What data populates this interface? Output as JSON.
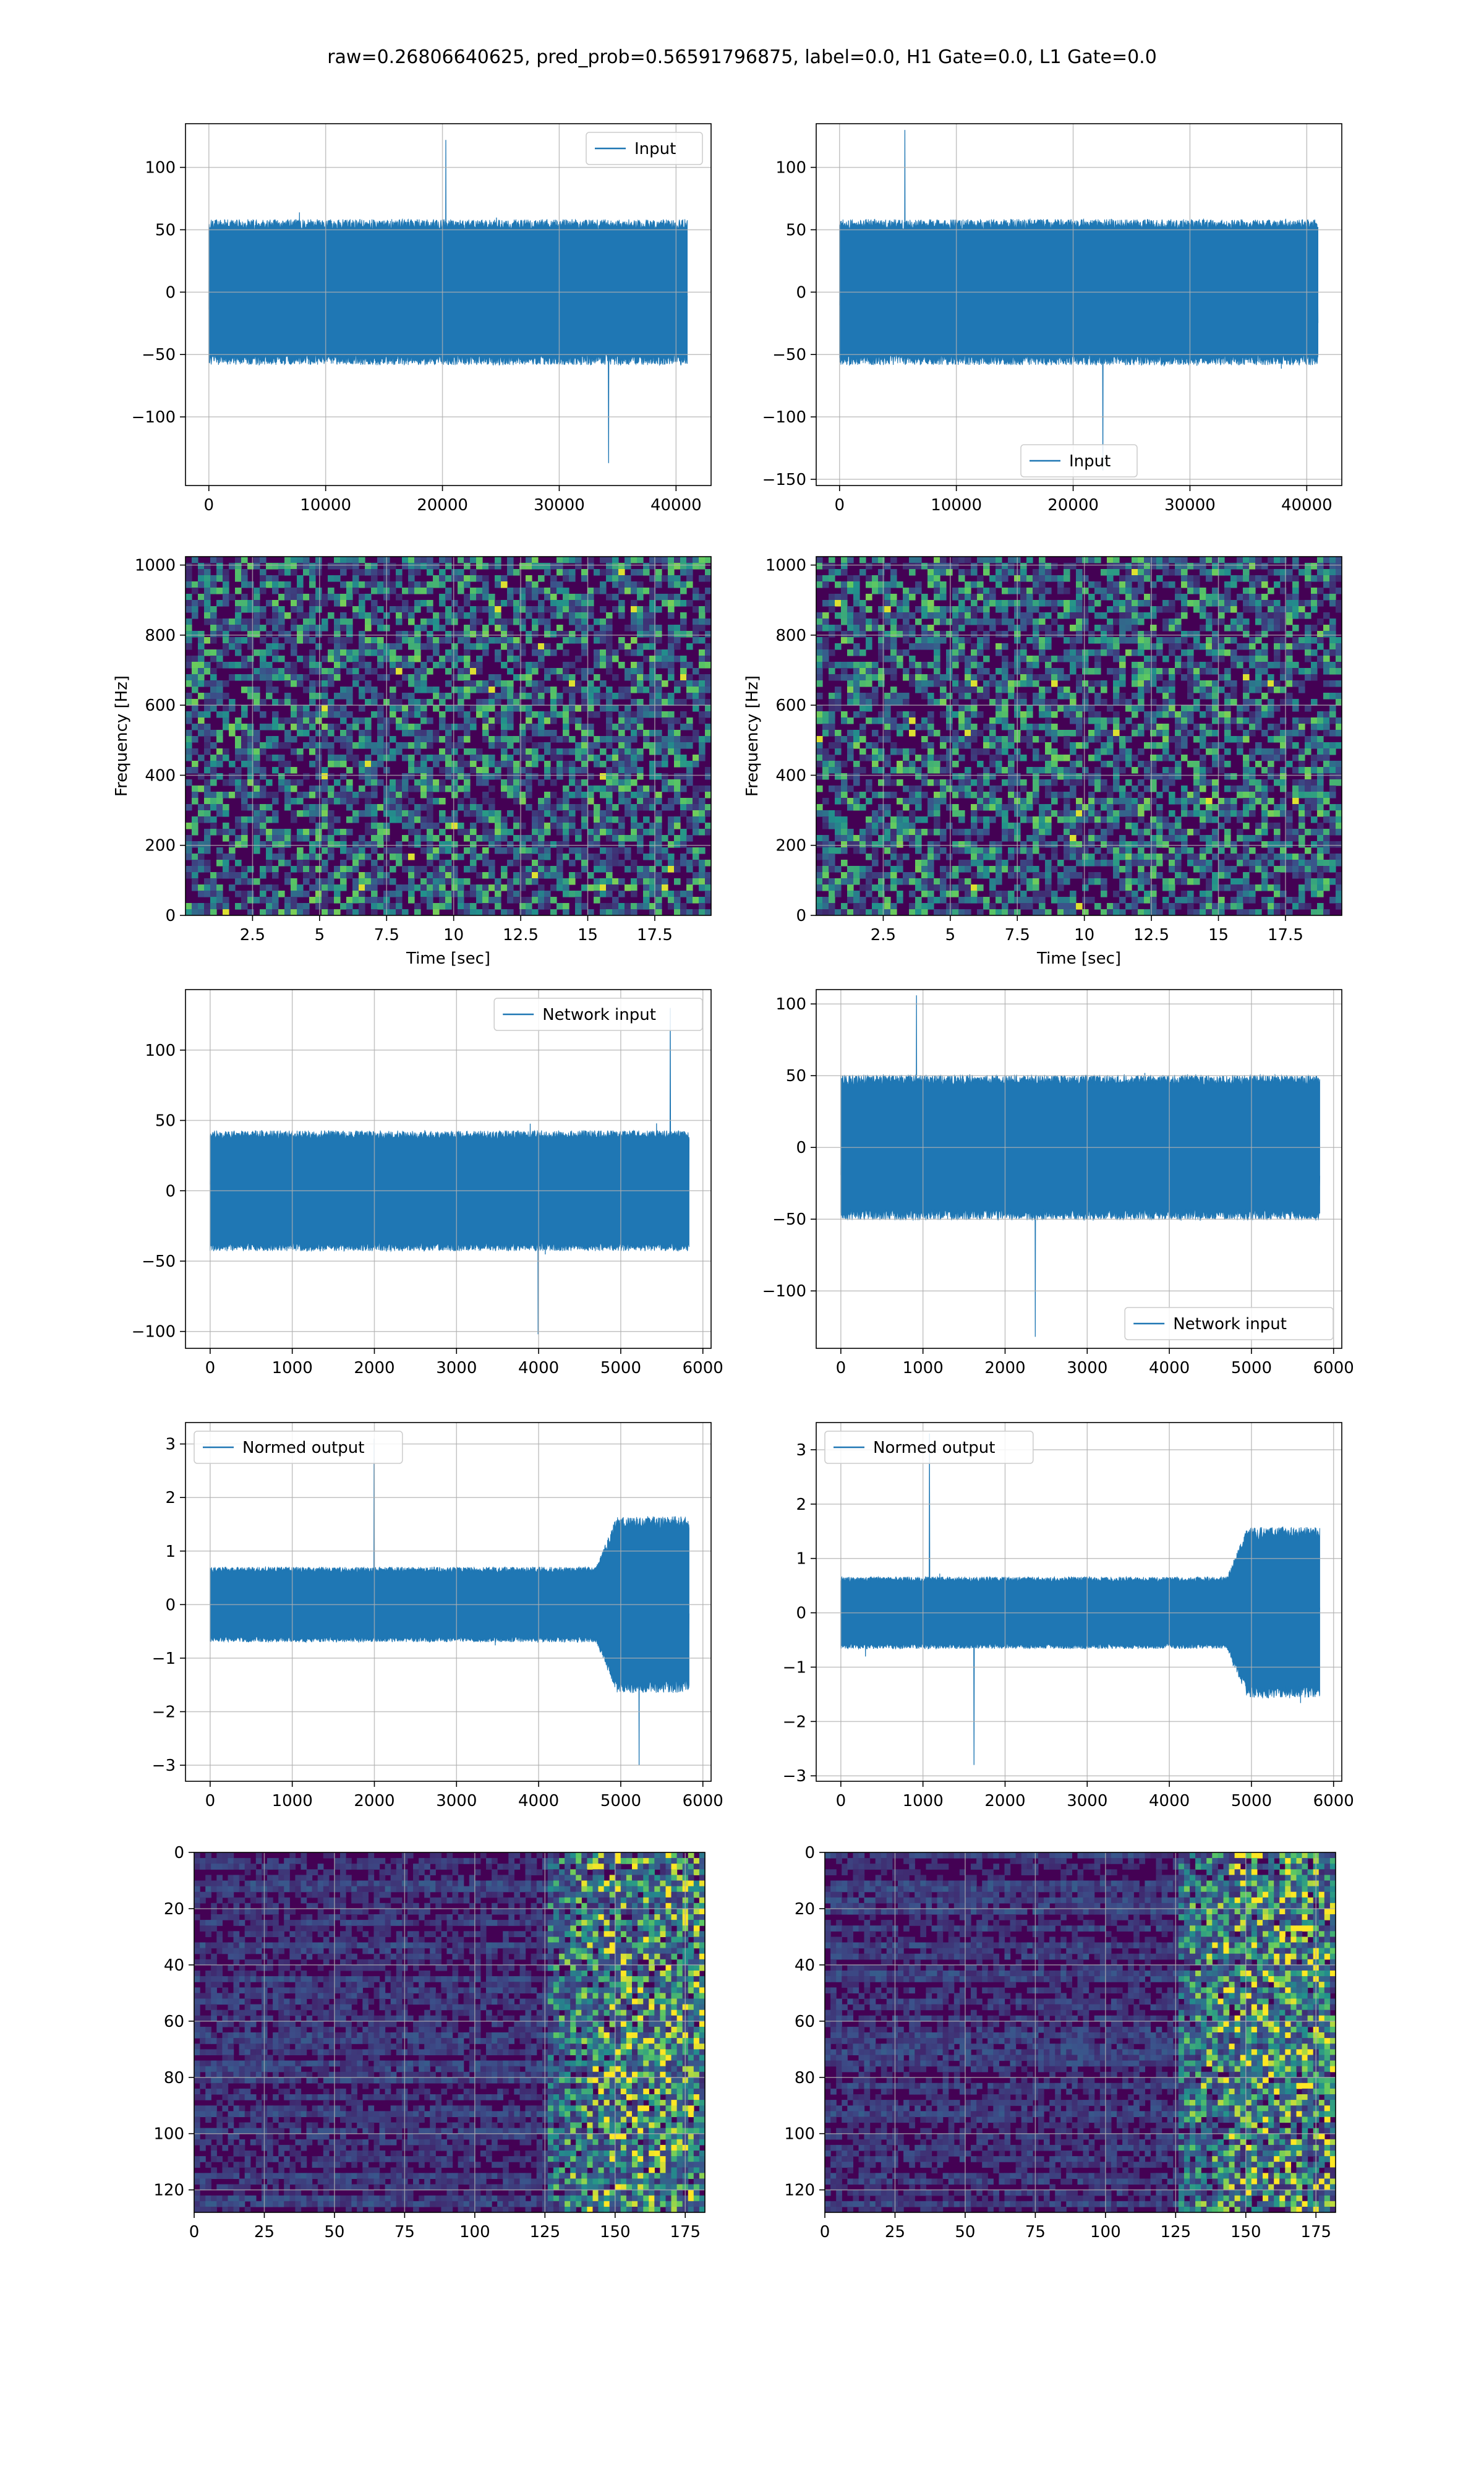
{
  "figure": {
    "title": "raw=0.26806640625, pred_prob=0.56591796875, label=0.0, H1 Gate=0.0, L1 Gate=0.0"
  },
  "colors": {
    "line": "#1f77b4",
    "grid": "#b0b0b0",
    "viridis_low": "#440154",
    "viridis_mid": "#21918c",
    "viridis_high": "#fde725"
  },
  "chart_data": [
    {
      "id": "input-h1",
      "type": "line",
      "xlim": [
        -2000,
        43000
      ],
      "ylim": [
        -155,
        135
      ],
      "xticks": [
        0,
        10000,
        20000,
        30000,
        40000
      ],
      "yticks": [
        -100,
        -50,
        0,
        50,
        100
      ],
      "legend": "Input",
      "legend_loc": "upper right",
      "series": [
        {
          "name": "Input",
          "x_range": [
            0,
            40960
          ],
          "envelope": [
            -75,
            75
          ],
          "peaks": [
            -137,
            122
          ]
        }
      ]
    },
    {
      "id": "input-l1",
      "type": "line",
      "xlim": [
        -2000,
        43000
      ],
      "ylim": [
        -155,
        135
      ],
      "xticks": [
        0,
        10000,
        20000,
        30000,
        40000
      ],
      "yticks": [
        -150,
        -100,
        -50,
        0,
        50,
        100
      ],
      "legend": "Input",
      "legend_loc": "lower center",
      "series": [
        {
          "name": "Input",
          "x_range": [
            0,
            40960
          ],
          "envelope": [
            -75,
            75
          ],
          "peaks": [
            -143,
            130
          ]
        }
      ]
    },
    {
      "id": "spectrogram-h1",
      "type": "heatmap",
      "xlim": [
        0,
        19.6
      ],
      "ylim": [
        0,
        1024
      ],
      "xticks": [
        2.5,
        5.0,
        7.5,
        10.0,
        12.5,
        15.0,
        17.5
      ],
      "yticks": [
        0,
        200,
        400,
        600,
        800,
        1000
      ],
      "xlabel": "Time [sec]",
      "ylabel": "Frequency [Hz]"
    },
    {
      "id": "spectrogram-l1",
      "type": "heatmap",
      "xlim": [
        0,
        19.6
      ],
      "ylim": [
        0,
        1024
      ],
      "xticks": [
        2.5,
        5.0,
        7.5,
        10.0,
        12.5,
        15.0,
        17.5
      ],
      "yticks": [
        0,
        200,
        400,
        600,
        800,
        1000
      ],
      "xlabel": "Time [sec]",
      "ylabel": "Frequency [Hz]"
    },
    {
      "id": "network-input-h1",
      "type": "line",
      "xlim": [
        -300,
        6100
      ],
      "ylim": [
        -112,
        143
      ],
      "xticks": [
        0,
        1000,
        2000,
        3000,
        4000,
        5000,
        6000
      ],
      "yticks": [
        -100,
        -50,
        0,
        50,
        100
      ],
      "legend": "Network input",
      "legend_loc": "upper right",
      "series": [
        {
          "name": "Network input",
          "x_range": [
            0,
            5832
          ],
          "envelope": [
            -55,
            55
          ],
          "peaks": [
            -102,
            130
          ]
        }
      ]
    },
    {
      "id": "network-input-l1",
      "type": "line",
      "xlim": [
        -300,
        6100
      ],
      "ylim": [
        -140,
        110
      ],
      "xticks": [
        0,
        1000,
        2000,
        3000,
        4000,
        5000,
        6000
      ],
      "yticks": [
        -100,
        -50,
        0,
        50,
        100
      ],
      "legend": "Network input",
      "legend_loc": "lower right",
      "series": [
        {
          "name": "Network input",
          "x_range": [
            0,
            5832
          ],
          "envelope": [
            -65,
            65
          ],
          "peaks": [
            -132,
            106
          ]
        }
      ]
    },
    {
      "id": "normed-output-h1",
      "type": "line",
      "xlim": [
        -300,
        6100
      ],
      "ylim": [
        -3.3,
        3.4
      ],
      "xticks": [
        0,
        1000,
        2000,
        3000,
        4000,
        5000,
        6000
      ],
      "yticks": [
        -3,
        -2,
        -1,
        0,
        1,
        2,
        3
      ],
      "legend": "Normed output",
      "legend_loc": "upper left",
      "series": [
        {
          "name": "Normed output",
          "x_range": [
            0,
            5832
          ],
          "envelope": [
            -0.9,
            0.9
          ],
          "burst_start": 4700,
          "burst_envelope": [
            -2.2,
            2.2
          ],
          "peaks": [
            -3.0,
            3.1
          ]
        }
      ]
    },
    {
      "id": "normed-output-l1",
      "type": "line",
      "xlim": [
        -300,
        6100
      ],
      "ylim": [
        -3.1,
        3.5
      ],
      "xticks": [
        0,
        1000,
        2000,
        3000,
        4000,
        5000,
        6000
      ],
      "yticks": [
        -3,
        -2,
        -1,
        0,
        1,
        2,
        3
      ],
      "legend": "Normed output",
      "legend_loc": "upper left",
      "series": [
        {
          "name": "Normed output",
          "x_range": [
            0,
            5832
          ],
          "envelope": [
            -0.85,
            0.85
          ],
          "burst_start": 4700,
          "burst_envelope": [
            -2.1,
            2.1
          ],
          "peaks": [
            -2.8,
            3.3
          ]
        }
      ]
    },
    {
      "id": "image-h1",
      "type": "heatmap",
      "xlim": [
        0,
        182
      ],
      "ylim": [
        128,
        0
      ],
      "xticks": [
        0,
        25,
        50,
        75,
        100,
        125,
        150,
        175
      ],
      "yticks": [
        0,
        20,
        40,
        60,
        80,
        100,
        120
      ],
      "bright_from_col": 125
    },
    {
      "id": "image-l1",
      "type": "heatmap",
      "xlim": [
        0,
        182
      ],
      "ylim": [
        128,
        0
      ],
      "xticks": [
        0,
        25,
        50,
        75,
        100,
        125,
        150,
        175
      ],
      "yticks": [
        0,
        20,
        40,
        60,
        80,
        100,
        120
      ],
      "bright_from_col": 125
    }
  ]
}
